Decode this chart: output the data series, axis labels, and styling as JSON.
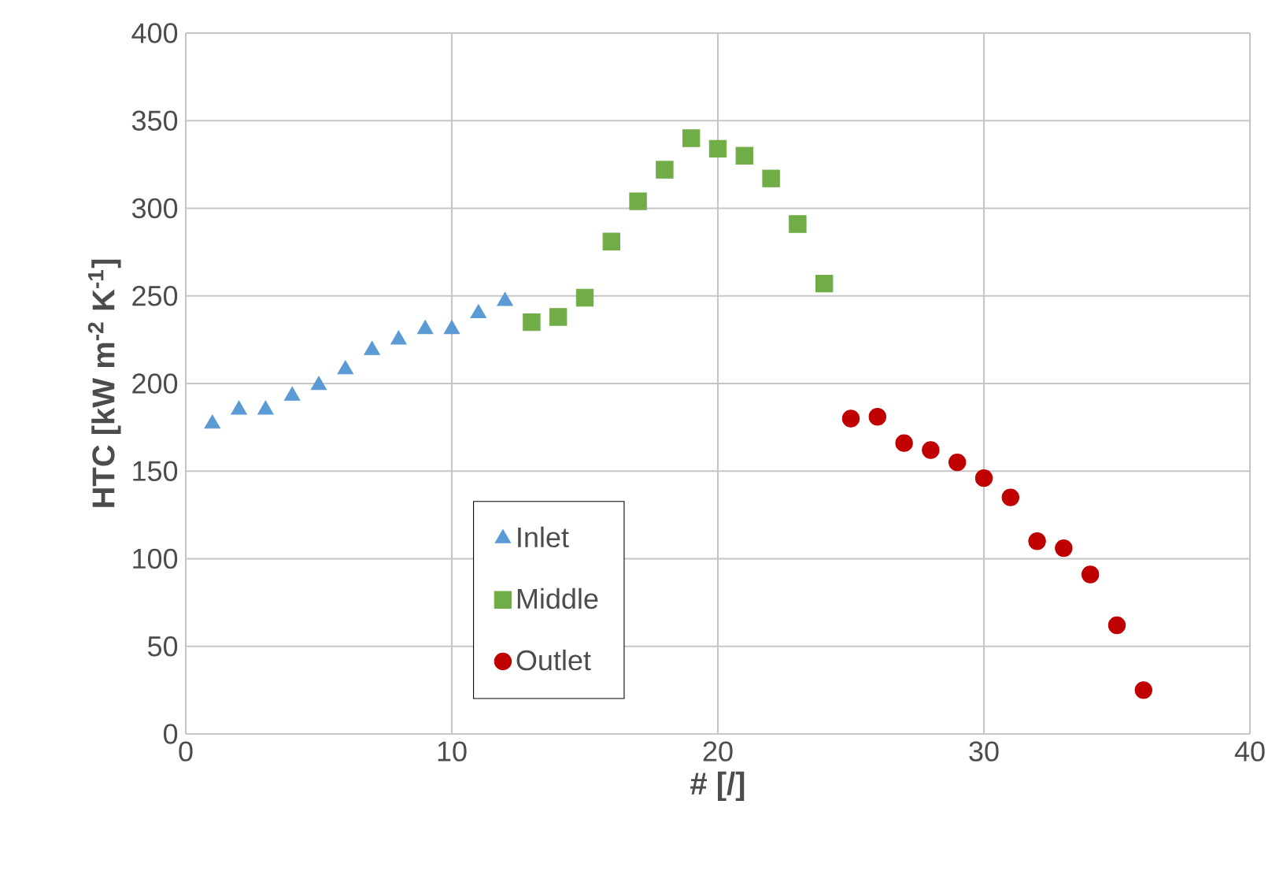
{
  "chart_data": {
    "type": "scatter",
    "xlabel": "# [/]",
    "ylabel": "HTC [kW m$^{-2}$ K$^{-1}$]",
    "xlim": [
      0,
      40
    ],
    "ylim": [
      0,
      400
    ],
    "xticks": [
      0,
      10,
      20,
      30,
      40
    ],
    "yticks": [
      0,
      50,
      100,
      150,
      200,
      250,
      300,
      350,
      400
    ],
    "grid": true,
    "legend": "bottom left",
    "series": [
      {
        "name": "Inlet",
        "color": "#5b9bd5",
        "marker": "triangle",
        "x": [
          1,
          2,
          3,
          4,
          5,
          6,
          7,
          8,
          9,
          10,
          11,
          12
        ],
        "values": [
          177,
          185,
          185,
          193,
          199,
          208,
          219,
          225,
          231,
          231,
          240,
          247
        ]
      },
      {
        "name": "Middle",
        "color": "#70ad47",
        "marker": "square",
        "x": [
          13,
          14,
          15,
          16,
          17,
          18,
          19,
          20,
          21,
          22,
          23,
          24
        ],
        "values": [
          235,
          238,
          249,
          281,
          304,
          322,
          340,
          334,
          330,
          317,
          291,
          257
        ]
      },
      {
        "name": "Outlet",
        "color": "#c00000",
        "marker": "circle",
        "x": [
          25,
          26,
          27,
          28,
          29,
          30,
          31,
          32,
          33,
          34,
          35,
          36
        ],
        "values": [
          180,
          181,
          166,
          162,
          155,
          146,
          135,
          110,
          106,
          91,
          62,
          25
        ]
      }
    ]
  }
}
